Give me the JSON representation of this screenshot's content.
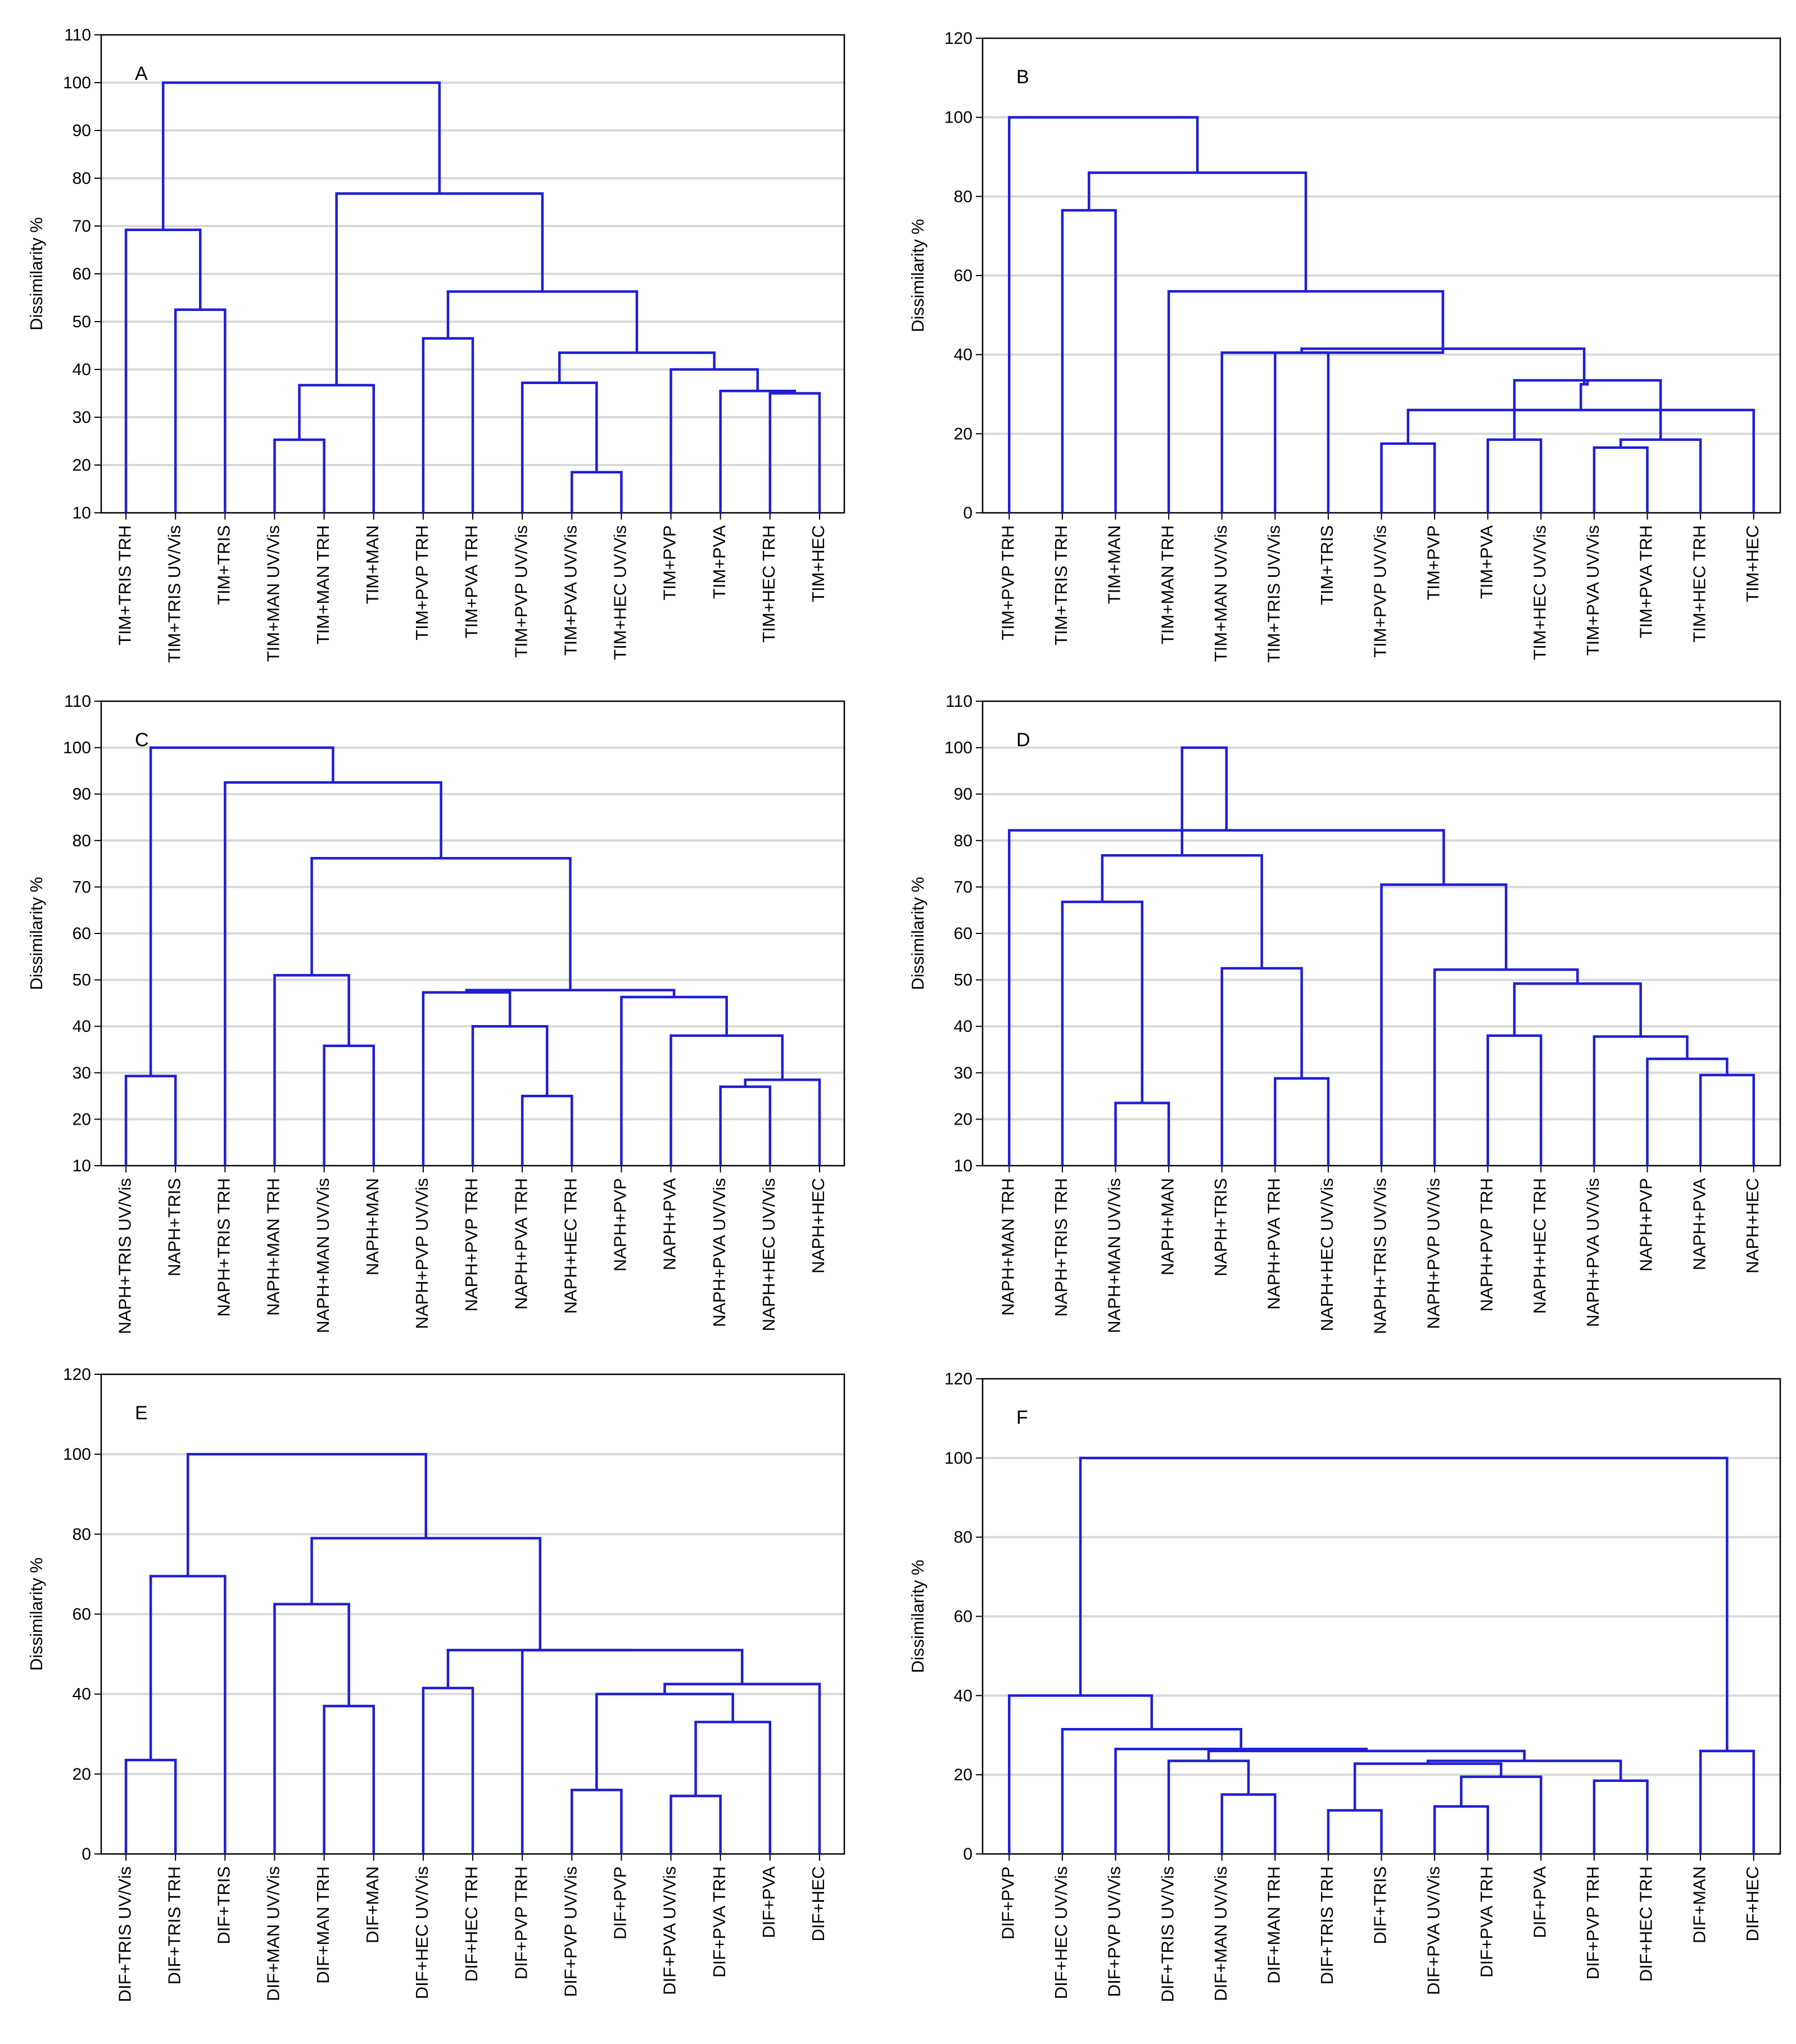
{
  "figure": {
    "line_color": "#1f1fd6",
    "grid_color": "#d9d9d9",
    "frame_color": "#000000"
  },
  "chart_data": [
    {
      "panel": "A",
      "type": "dendrogram",
      "ylabel": "Dissimilarity %",
      "ylim": [
        10,
        110
      ],
      "yticks": [
        10,
        20,
        30,
        40,
        50,
        60,
        70,
        80,
        90,
        100,
        110
      ],
      "grid": true,
      "labels": [
        "TIM+TRIS TRH",
        "TIM+TRIS UV/Vis",
        "TIM+TRIS",
        "TIM+MAN UV/Vis",
        "TIM+MAN TRH",
        "TIM+MAN",
        "TIM+PVP TRH",
        "TIM+PVA TRH",
        "TIM+PVP UV/Vis",
        "TIM+PVA UV/Vis",
        "TIM+HEC UV/Vis",
        "TIM+PVP",
        "TIM+PVA",
        "TIM+HEC TRH",
        "TIM+HEC"
      ],
      "merges": [
        [
          9,
          10,
          18.5
        ],
        [
          13,
          14,
          35.0
        ],
        [
          3,
          4,
          25.3
        ],
        [
          12,
          16,
          35.5
        ],
        [
          11,
          18,
          40.0
        ],
        [
          8,
          15,
          37.2
        ],
        [
          20,
          19,
          43.5
        ],
        [
          6,
          7,
          46.5
        ],
        [
          1,
          2,
          52.5
        ],
        [
          22,
          21,
          56.3
        ],
        [
          17,
          5,
          36.7
        ],
        [
          0,
          23,
          69.2
        ],
        [
          25,
          24,
          76.8
        ],
        [
          26,
          27,
          100.0
        ]
      ]
    },
    {
      "panel": "B",
      "type": "dendrogram",
      "ylabel": "Dissimilarity %",
      "ylim": [
        0,
        120
      ],
      "yticks": [
        0,
        20,
        40,
        60,
        80,
        100,
        120
      ],
      "grid": true,
      "labels": [
        "TIM+PVP TRH",
        "TIM+TRIS TRH",
        "TIM+MAN",
        "TIM+MAN TRH",
        "TIM+MAN UV/Vis",
        "TIM+TRIS UV/Vis",
        "TIM+TRIS",
        "TIM+PVP UV/Vis",
        "TIM+PVP",
        "TIM+PVA",
        "TIM+HEC UV/Vis",
        "TIM+PVA UV/Vis",
        "TIM+PVA TRH",
        "TIM+HEC TRH",
        "TIM+HEC"
      ],
      "merges": [
        [
          11,
          12,
          16.5
        ],
        [
          7,
          8,
          17.5
        ],
        [
          9,
          10,
          18.5
        ],
        [
          15,
          13,
          18.5
        ],
        [
          16,
          14,
          26.0
        ],
        [
          17,
          18,
          33.5
        ],
        [
          19,
          20,
          32.5
        ],
        [
          5,
          6,
          40.5
        ],
        [
          21,
          22,
          41.5
        ],
        [
          3,
          23,
          56.0
        ],
        [
          1,
          2,
          76.5
        ],
        [
          25,
          24,
          86.0
        ],
        [
          0,
          26,
          100.0
        ],
        [
          4,
          23,
          40.5
        ]
      ]
    },
    {
      "panel": "C",
      "type": "dendrogram",
      "ylabel": "Dissimilarity %",
      "ylim": [
        10,
        110
      ],
      "yticks": [
        10,
        20,
        30,
        40,
        50,
        60,
        70,
        80,
        90,
        100,
        110
      ],
      "grid": true,
      "labels": [
        "NAPH+TRIS UV/Vis",
        "NAPH+TRIS",
        "NAPH+TRIS TRH",
        "NAPH+MAN TRH",
        "NAPH+MAN UV/Vis",
        "NAPH+MAN",
        "NAPH+PVP UV/Vis",
        "NAPH+PVP TRH",
        "NAPH+PVA TRH",
        "NAPH+HEC TRH",
        "NAPH+PVP",
        "NAPH+PVA",
        "NAPH+PVA UV/Vis",
        "NAPH+HEC UV/Vis",
        "NAPH+HEC"
      ],
      "merges": [
        [
          8,
          9,
          25.0
        ],
        [
          12,
          13,
          27.0
        ],
        [
          16,
          14,
          28.5
        ],
        [
          0,
          1,
          29.3
        ],
        [
          4,
          5,
          35.8
        ],
        [
          11,
          17,
          38.0
        ],
        [
          7,
          15,
          40.0
        ],
        [
          10,
          20,
          46.3
        ],
        [
          6,
          21,
          47.3
        ],
        [
          3,
          19,
          51.0
        ],
        [
          23,
          22,
          47.8
        ],
        [
          24,
          25,
          76.2
        ],
        [
          2,
          26,
          92.5
        ],
        [
          18,
          27,
          100.0
        ]
      ]
    },
    {
      "panel": "D",
      "type": "dendrogram",
      "ylabel": "Dissimilarity %",
      "ylim": [
        10,
        110
      ],
      "yticks": [
        10,
        20,
        30,
        40,
        50,
        60,
        70,
        80,
        90,
        100,
        110
      ],
      "grid": true,
      "labels": [
        "NAPH+MAN TRH",
        "NAPH+TRIS TRH",
        "NAPH+MAN UV/Vis",
        "NAPH+MAN",
        "NAPH+TRIS",
        "NAPH+PVA TRH",
        "NAPH+HEC UV/Vis",
        "NAPH+TRIS UV/Vis",
        "NAPH+PVP UV/Vis",
        "NAPH+PVP TRH",
        "NAPH+HEC TRH",
        "NAPH+PVA UV/Vis",
        "NAPH+PVP",
        "NAPH+PVA",
        "NAPH+HEC"
      ],
      "merges": [
        [
          2,
          3,
          23.5
        ],
        [
          5,
          6,
          28.8
        ],
        [
          13,
          14,
          29.5
        ],
        [
          12,
          17,
          33.0
        ],
        [
          9,
          10,
          38.0
        ],
        [
          11,
          18,
          37.8
        ],
        [
          19,
          20,
          49.2
        ],
        [
          8,
          21,
          52.2
        ],
        [
          4,
          16,
          52.5
        ],
        [
          1,
          15,
          66.8
        ],
        [
          7,
          22,
          70.5
        ],
        [
          24,
          23,
          76.8
        ],
        [
          0,
          25,
          82.2
        ],
        [
          27,
          26,
          100.0
        ]
      ]
    },
    {
      "panel": "E",
      "type": "dendrogram",
      "ylabel": "Dissimilarity %",
      "ylim": [
        0,
        120
      ],
      "yticks": [
        0,
        20,
        40,
        60,
        80,
        100,
        120
      ],
      "grid": true,
      "labels": [
        "DIF+TRIS UV/Vis",
        "DIF+TRIS TRH",
        "DIF+TRIS",
        "DIF+MAN UV/Vis",
        "DIF+MAN TRH",
        "DIF+MAN",
        "DIF+HEC UV/Vis",
        "DIF+HEC TRH",
        "DIF+PVP TRH",
        "DIF+PVP UV/Vis",
        "DIF+PVP",
        "DIF+PVA UV/Vis",
        "DIF+PVA TRH",
        "DIF+PVA",
        "DIF+HEC"
      ],
      "merges": [
        [
          11,
          12,
          14.5
        ],
        [
          9,
          10,
          16.0
        ],
        [
          0,
          1,
          23.5
        ],
        [
          15,
          13,
          33.0
        ],
        [
          4,
          5,
          37.0
        ],
        [
          16,
          18,
          40.0
        ],
        [
          6,
          7,
          41.5
        ],
        [
          20,
          14,
          42.5
        ],
        [
          8,
          22,
          51.0
        ],
        [
          21,
          23,
          51.0
        ],
        [
          3,
          19,
          62.5
        ],
        [
          2,
          17,
          69.5
        ],
        [
          25,
          24,
          79.0
        ],
        [
          26,
          27,
          100.0
        ]
      ]
    },
    {
      "panel": "F",
      "type": "dendrogram",
      "ylabel": "Dissimilarity %",
      "ylim": [
        0,
        120
      ],
      "yticks": [
        0,
        20,
        40,
        60,
        80,
        100,
        120
      ],
      "grid": true,
      "labels": [
        "DIF+PVP",
        "DIF+HEC UV/Vis",
        "DIF+PVP UV/Vis",
        "DIF+TRIS UV/Vis",
        "DIF+MAN UV/Vis",
        "DIF+MAN TRH",
        "DIF+TRIS TRH",
        "DIF+TRIS",
        "DIF+PVA UV/Vis",
        "DIF+PVA TRH",
        "DIF+PVA",
        "DIF+PVP TRH",
        "DIF+HEC TRH",
        "DIF+MAN",
        "DIF+HEC"
      ],
      "merges": [
        [
          6,
          7,
          11.0
        ],
        [
          8,
          9,
          12.0
        ],
        [
          4,
          5,
          15.0
        ],
        [
          11,
          12,
          18.5
        ],
        [
          16,
          10,
          19.5
        ],
        [
          15,
          19,
          22.8
        ],
        [
          3,
          17,
          23.5
        ],
        [
          20,
          18,
          23.5
        ],
        [
          22,
          21,
          26.0
        ],
        [
          13,
          14,
          26.0
        ],
        [
          2,
          23,
          26.5
        ],
        [
          1,
          25,
          31.5
        ],
        [
          0,
          26,
          40.0
        ],
        [
          27,
          24,
          100.0
        ]
      ]
    }
  ]
}
